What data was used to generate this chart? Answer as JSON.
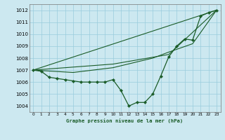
{
  "background_color": "#cce8f0",
  "grid_color": "#99ccdd",
  "line_color": "#1a5c28",
  "marker_color": "#1a5c28",
  "title": "Graphe pression niveau de la mer (hPa)",
  "xlim": [
    -0.5,
    23.5
  ],
  "ylim": [
    1003.5,
    1012.5
  ],
  "yticks": [
    1004,
    1005,
    1006,
    1007,
    1008,
    1009,
    1010,
    1011,
    1012
  ],
  "xticks": [
    0,
    1,
    2,
    3,
    4,
    5,
    6,
    7,
    8,
    9,
    10,
    11,
    12,
    13,
    14,
    15,
    16,
    17,
    18,
    19,
    20,
    21,
    22,
    23
  ],
  "main_series": {
    "x": [
      0,
      1,
      2,
      3,
      4,
      5,
      6,
      7,
      8,
      9,
      10,
      11,
      12,
      13,
      14,
      15,
      16,
      17,
      18,
      19,
      20,
      21,
      22,
      23
    ],
    "y": [
      1007.0,
      1006.9,
      1006.4,
      1006.3,
      1006.2,
      1006.1,
      1006.0,
      1006.0,
      1006.0,
      1006.0,
      1006.2,
      1005.3,
      1004.0,
      1004.3,
      1004.3,
      1005.0,
      1006.5,
      1008.1,
      1009.0,
      1009.6,
      1009.5,
      1011.5,
      1011.8,
      1012.0
    ]
  },
  "fan_lines": [
    {
      "x": [
        0,
        23
      ],
      "y": [
        1007.0,
        1012.0
      ]
    },
    {
      "x": [
        0,
        10,
        17,
        23
      ],
      "y": [
        1007.0,
        1007.5,
        1008.3,
        1012.0
      ]
    },
    {
      "x": [
        0,
        5,
        10,
        15,
        17,
        20,
        23
      ],
      "y": [
        1007.0,
        1006.8,
        1007.2,
        1008.0,
        1008.5,
        1009.2,
        1012.0
      ]
    }
  ]
}
